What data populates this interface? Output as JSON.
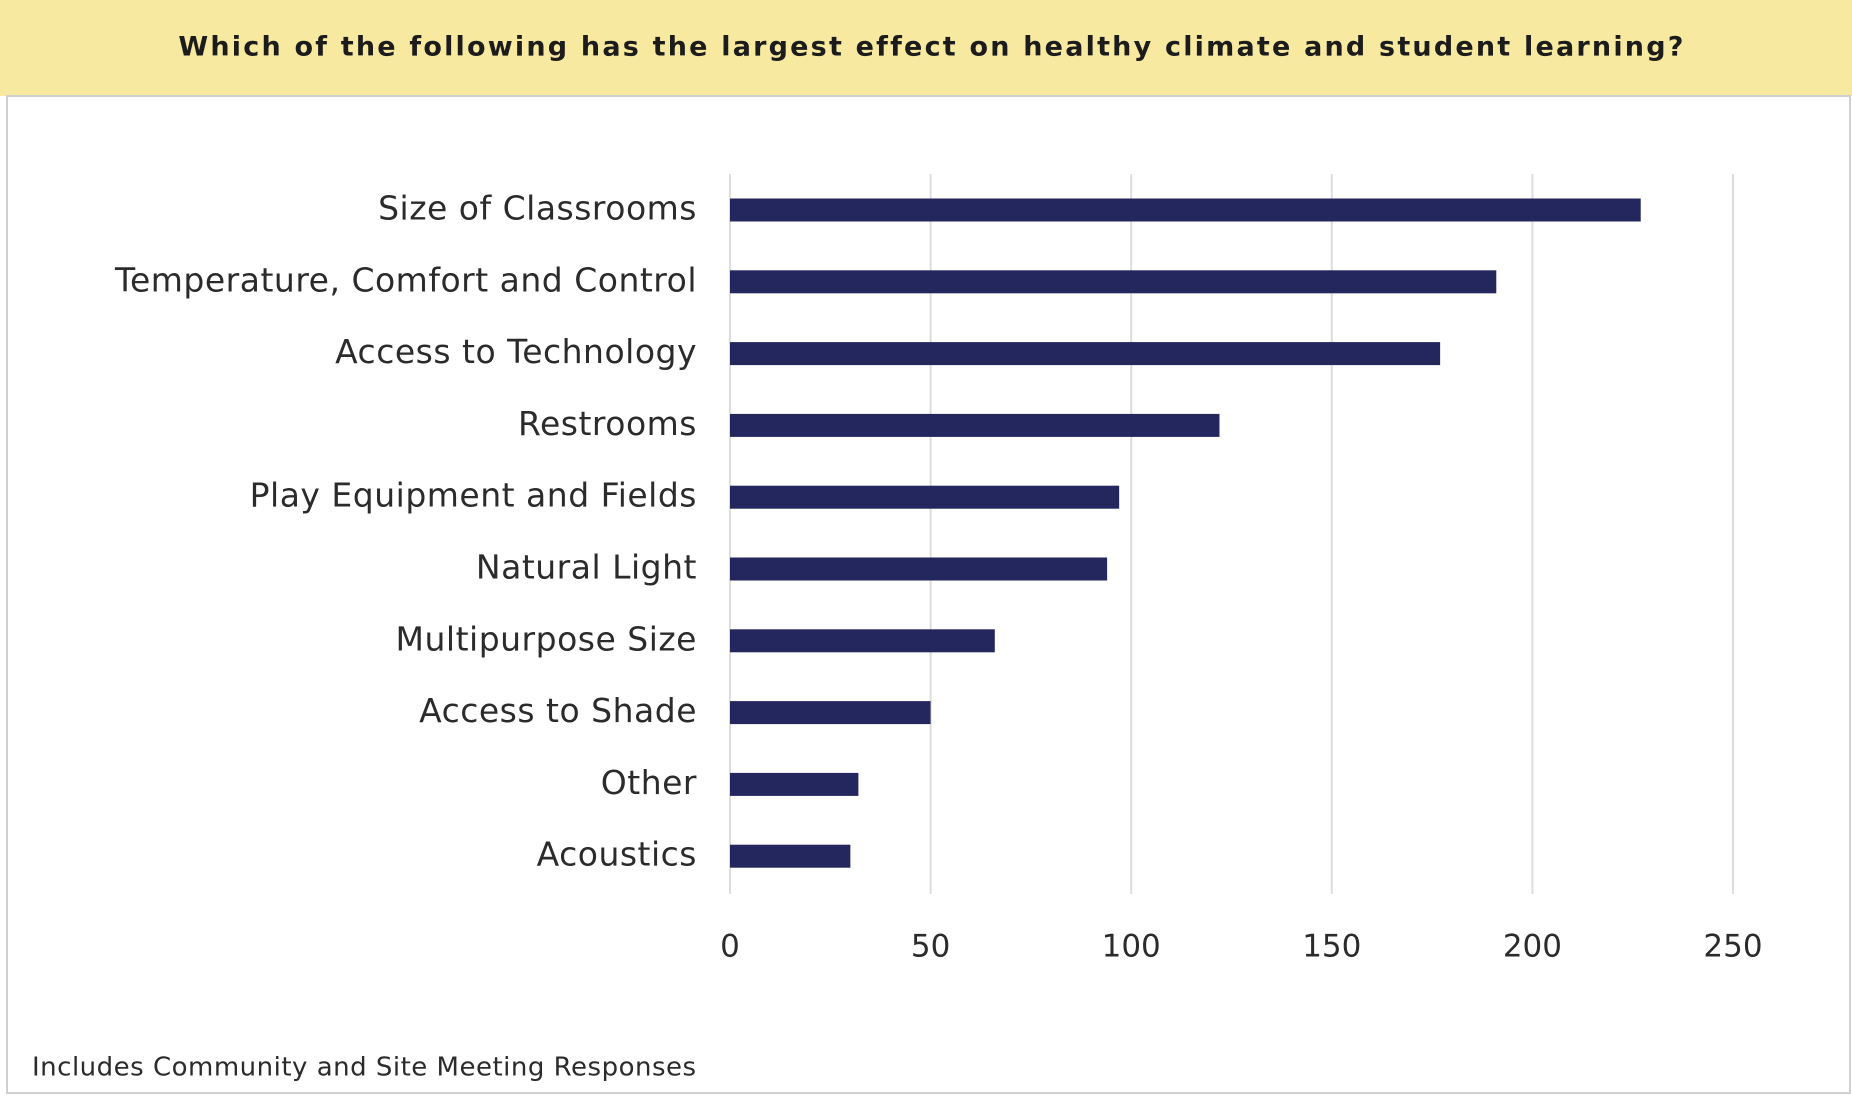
{
  "chart_data": {
    "type": "bar",
    "orientation": "horizontal",
    "title": "Which of the following has the largest effect on healthy climate and student learning?",
    "note": "Includes Community and Site Meeting Responses",
    "categories": [
      "Size of Classrooms",
      "Temperature, Comfort and Control",
      "Access to Technology",
      "Restrooms",
      "Play Equipment and Fields",
      "Natural Light",
      "Multipurpose Size",
      "Access to Shade",
      "Other",
      "Acoustics"
    ],
    "values": [
      227,
      191,
      177,
      122,
      97,
      94,
      66,
      50,
      32,
      30
    ],
    "color": "#24265e",
    "xlim": [
      0,
      250
    ],
    "xticks": [
      0,
      50,
      100,
      150,
      200,
      250
    ],
    "grid": true
  }
}
